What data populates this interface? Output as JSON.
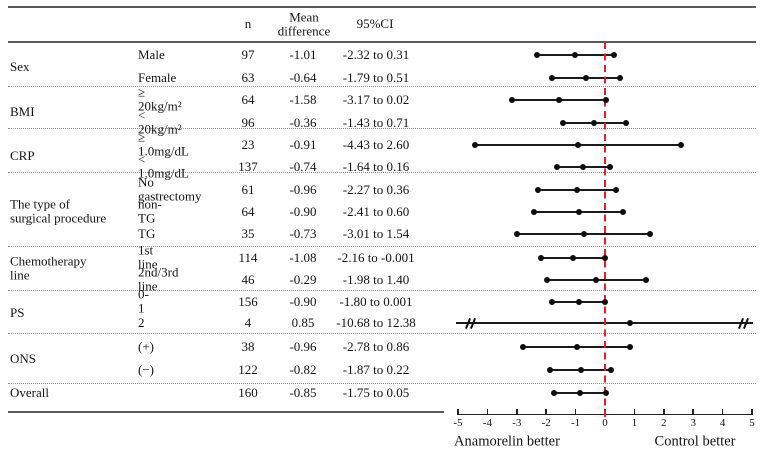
{
  "colors": {
    "reference_line": "#ed1c24",
    "ci_line": "#1b1b1b",
    "rule": "#5a5a5a",
    "dotted_separator": "#8f8f8f"
  },
  "chart_data": {
    "type": "forest",
    "title": "",
    "columns": {
      "n": "n",
      "mean": "Mean difference",
      "ci": "95%CI"
    },
    "groups": [
      {
        "label": "Sex",
        "rows": [
          {
            "subgroup": "Male",
            "n": "97",
            "mean": "-1.01",
            "ci_text": "-2.32 to 0.31",
            "estimate": -1.01,
            "ci_low": -2.32,
            "ci_high": 0.31
          },
          {
            "subgroup": "Female",
            "n": "63",
            "mean": "-0.64",
            "ci_text": "-1.79 to 0.51",
            "estimate": -0.64,
            "ci_low": -1.79,
            "ci_high": 0.51
          }
        ]
      },
      {
        "label": "BMI",
        "rows": [
          {
            "subgroup": "≥ 20kg/m²",
            "n": "64",
            "mean": "-1.58",
            "ci_text": "-3.17 to 0.02",
            "estimate": -1.58,
            "ci_low": -3.17,
            "ci_high": 0.02
          },
          {
            "subgroup": "< 20kg/m²",
            "n": "96",
            "mean": "-0.36",
            "ci_text": "-1.43 to 0.71",
            "estimate": -0.36,
            "ci_low": -1.43,
            "ci_high": 0.71
          }
        ]
      },
      {
        "label": "CRP",
        "rows": [
          {
            "subgroup": "≥ 1.0mg/dL",
            "n": "23",
            "mean": "-0.91",
            "ci_text": "-4.43 to 2.60",
            "estimate": -0.91,
            "ci_low": -4.43,
            "ci_high": 2.6
          },
          {
            "subgroup": "< 1.0mg/dL",
            "n": "137",
            "mean": "-0.74",
            "ci_text": "-1.64 to 0.16",
            "estimate": -0.74,
            "ci_low": -1.64,
            "ci_high": 0.16
          }
        ]
      },
      {
        "label": "The type of\nsurgical procedure",
        "rows": [
          {
            "subgroup": "No gastrectomy",
            "n": "61",
            "mean": "-0.96",
            "ci_text": "-2.27 to 0.36",
            "estimate": -0.96,
            "ci_low": -2.27,
            "ci_high": 0.36
          },
          {
            "subgroup": "non-TG",
            "n": "64",
            "mean": "-0.90",
            "ci_text": "-2.41 to 0.60",
            "estimate": -0.9,
            "ci_low": -2.41,
            "ci_high": 0.6
          },
          {
            "subgroup": "TG",
            "n": "35",
            "mean": "-0.73",
            "ci_text": "-3.01 to 1.54",
            "estimate": -0.73,
            "ci_low": -3.01,
            "ci_high": 1.54
          }
        ]
      },
      {
        "label": "Chemotherapy\nline",
        "rows": [
          {
            "subgroup": "1st line",
            "n": "114",
            "mean": "-1.08",
            "ci_text": "-2.16 to -0.001",
            "estimate": -1.08,
            "ci_low": -2.16,
            "ci_high": -0.001
          },
          {
            "subgroup": "2nd/3rd line",
            "n": "46",
            "mean": "-0.29",
            "ci_text": "-1.98 to 1.40",
            "estimate": -0.29,
            "ci_low": -1.98,
            "ci_high": 1.4
          }
        ]
      },
      {
        "label": "PS",
        "rows": [
          {
            "subgroup": "0-1",
            "n": "156",
            "mean": "-0.90",
            "ci_text": "-1.80 to 0.001",
            "estimate": -0.9,
            "ci_low": -1.8,
            "ci_high": 0.001
          },
          {
            "subgroup": "2",
            "n": "4",
            "mean": "0.85",
            "ci_text": "-10.68 to 12.38",
            "estimate": 0.85,
            "ci_low": -10.68,
            "ci_high": 12.38,
            "clipped": true
          }
        ]
      },
      {
        "label": "ONS",
        "rows": [
          {
            "subgroup": "(+)",
            "n": "38",
            "mean": "-0.96",
            "ci_text": "-2.78 to 0.86",
            "estimate": -0.96,
            "ci_low": -2.78,
            "ci_high": 0.86
          },
          {
            "subgroup": "(−)",
            "n": "122",
            "mean": "-0.82",
            "ci_text": "-1.87 to 0.22",
            "estimate": -0.82,
            "ci_low": -1.87,
            "ci_high": 0.22
          }
        ]
      },
      {
        "label": "Overall",
        "rows": [
          {
            "subgroup": "",
            "n": "160",
            "mean": "-0.85",
            "ci_text": "-1.75 to 0.05",
            "estimate": -0.85,
            "ci_low": -1.75,
            "ci_high": 0.05
          }
        ]
      }
    ],
    "x_axis": {
      "min": -5,
      "max": 5,
      "ticks": [
        -5,
        -4,
        -3,
        -2,
        -1,
        0,
        1,
        2,
        3,
        4,
        5
      ],
      "reference_value": 0,
      "left_label": "Anamorelin better",
      "right_label": "Control better"
    }
  }
}
